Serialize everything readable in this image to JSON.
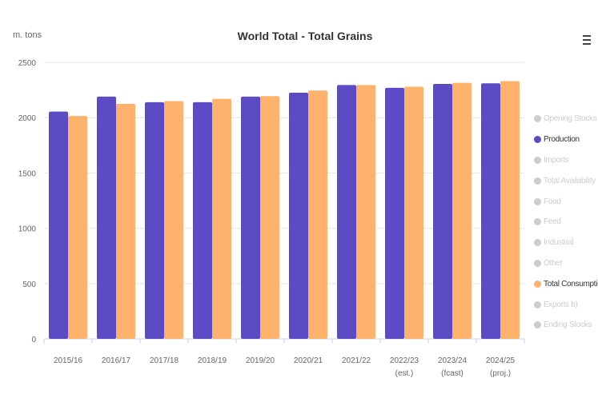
{
  "chart_data": {
    "type": "bar",
    "title": "World Total - Total Grains",
    "ylabel": "m. tons",
    "ylim": [
      0,
      2500
    ],
    "yticks": [
      0,
      500,
      1000,
      1500,
      2000,
      2500
    ],
    "grid": true,
    "legend_position": "right",
    "categories": [
      [
        "2015/16"
      ],
      [
        "2016/17"
      ],
      [
        "2017/18"
      ],
      [
        "2018/19"
      ],
      [
        "2019/20"
      ],
      [
        "2020/21"
      ],
      [
        "2021/22"
      ],
      [
        "2022/23",
        "(est.)"
      ],
      [
        "2023/24",
        "(fcast)"
      ],
      [
        "2024/25",
        "(proj.)"
      ]
    ],
    "series": [
      {
        "name": "Production",
        "color": "#5b4bc4",
        "values": [
          2055,
          2190,
          2140,
          2140,
          2190,
          2225,
          2295,
          2270,
          2305,
          2310
        ]
      },
      {
        "name": "Total Consumption",
        "color": "#ffb26b",
        "values": [
          2015,
          2125,
          2150,
          2170,
          2195,
          2245,
          2295,
          2280,
          2315,
          2330
        ]
      }
    ],
    "legend": [
      {
        "label": "Opening Stocks",
        "active": false
      },
      {
        "label": "Production",
        "active": true,
        "color": "#5b4bc4"
      },
      {
        "label": "Imports",
        "active": false
      },
      {
        "label": "Total Availability",
        "active": false
      },
      {
        "label": "Food",
        "active": false
      },
      {
        "label": "Feed",
        "active": false
      },
      {
        "label": "Industrial",
        "active": false
      },
      {
        "label": "Other",
        "active": false
      },
      {
        "label": "Total Consumption",
        "active": true,
        "color": "#ffb26b"
      },
      {
        "label": "Exports b)",
        "active": false
      },
      {
        "label": "Ending Stocks",
        "active": false
      }
    ]
  },
  "menu": {
    "icon": "hamburger-menu-icon"
  }
}
